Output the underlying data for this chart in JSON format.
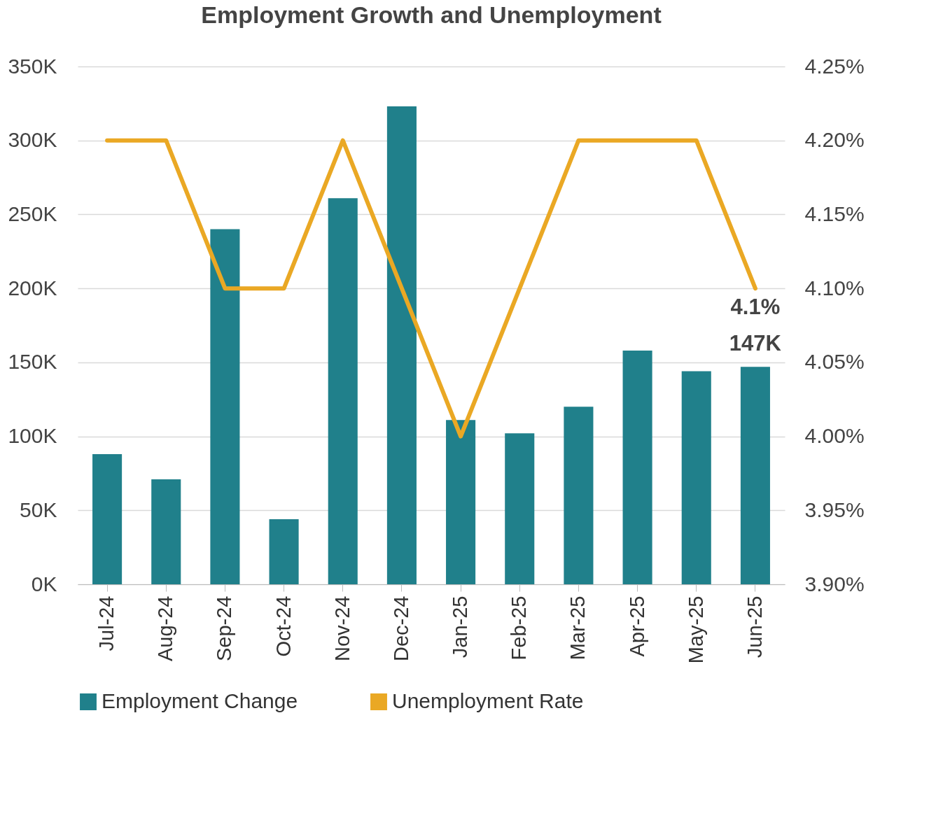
{
  "chart_data": {
    "type": "bar",
    "title": "Employment Growth and Unemployment",
    "categories": [
      "Jul-24",
      "Aug-24",
      "Sep-24",
      "Oct-24",
      "Nov-24",
      "Dec-24",
      "Jan-25",
      "Feb-25",
      "Mar-25",
      "Apr-25",
      "May-25",
      "Jun-25"
    ],
    "series": [
      {
        "name": "Employment Change",
        "color": "#20808b",
        "values": [
          88,
          71,
          240,
          44,
          261,
          323,
          111,
          102,
          120,
          158,
          144,
          147
        ],
        "value_labels": [
          null,
          null,
          null,
          null,
          null,
          null,
          null,
          null,
          null,
          null,
          null,
          "147K"
        ]
      },
      {
        "name": "Unemployment Rate",
        "type": "line",
        "axis": "y2",
        "color": "#eaa824",
        "values": [
          4.2,
          4.2,
          4.1,
          4.1,
          4.2,
          4.1,
          4.0,
          4.1,
          4.2,
          4.2,
          4.2,
          4.1
        ],
        "value_labels": [
          null,
          null,
          null,
          null,
          null,
          null,
          null,
          null,
          null,
          null,
          null,
          "4.1%"
        ]
      }
    ],
    "ylim": [
      0,
      350
    ],
    "yticks": [
      {
        "value": 0,
        "label": "0K"
      },
      {
        "value": 50,
        "label": "50K"
      },
      {
        "value": 100,
        "label": "100K"
      },
      {
        "value": 150,
        "label": "150K"
      },
      {
        "value": 200,
        "label": "200K"
      },
      {
        "value": 250,
        "label": "250K"
      },
      {
        "value": 300,
        "label": "300K"
      },
      {
        "value": 350,
        "label": "350K"
      }
    ],
    "y2lim": [
      3.9,
      4.25
    ],
    "y2ticks": [
      {
        "value": 3.9,
        "label": "3.90%"
      },
      {
        "value": 3.95,
        "label": "3.95%"
      },
      {
        "value": 4.0,
        "label": "4.00%"
      },
      {
        "value": 4.05,
        "label": "4.05%"
      },
      {
        "value": 4.1,
        "label": "4.10%"
      },
      {
        "value": 4.15,
        "label": "4.15%"
      },
      {
        "value": 4.2,
        "label": "4.20%"
      },
      {
        "value": 4.25,
        "label": "4.25%"
      }
    ],
    "grid": "y",
    "legend": "bottom",
    "marker": "none",
    "line_style": "solid"
  }
}
